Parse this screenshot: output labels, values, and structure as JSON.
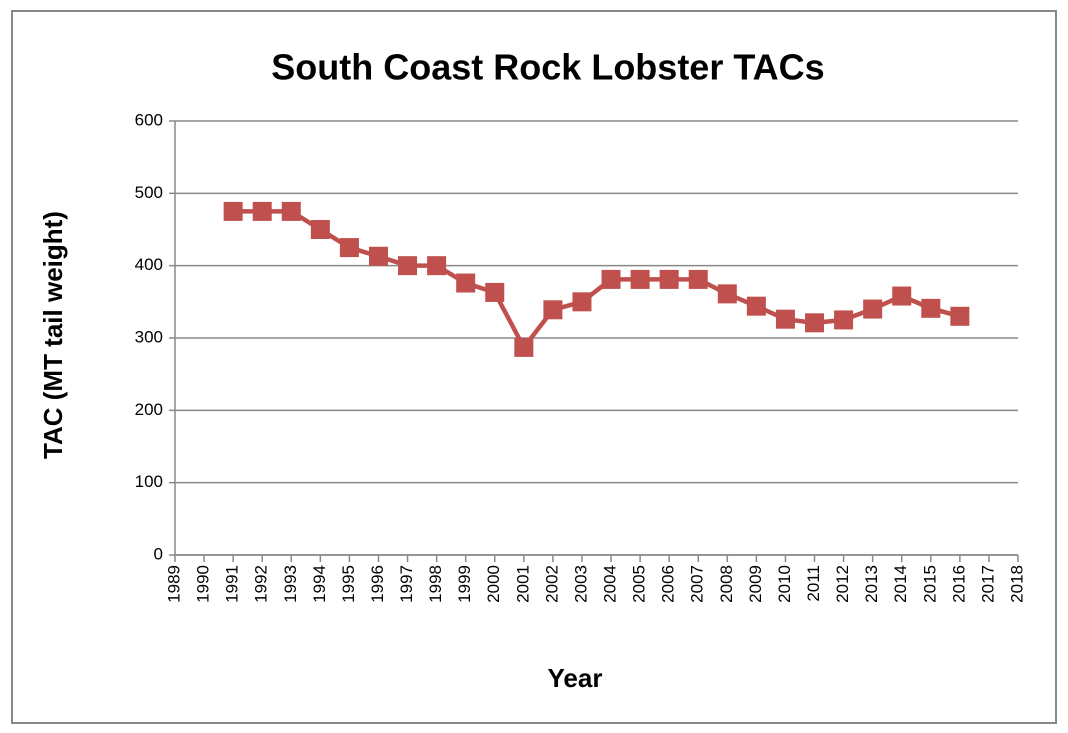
{
  "chart_data": {
    "type": "line",
    "title": "South Coast Rock Lobster TACs",
    "x_label": "Year",
    "y_label": "TAC (MT tail weight)",
    "x": [
      1991,
      1992,
      1993,
      1994,
      1995,
      1996,
      1997,
      1998,
      1999,
      2000,
      2001,
      2002,
      2003,
      2004,
      2005,
      2006,
      2007,
      2008,
      2009,
      2010,
      2011,
      2012,
      2013,
      2014,
      2015,
      2016
    ],
    "series": [
      {
        "color": "#c0504d",
        "values": [
          475,
          475,
          475,
          450,
          425,
          413,
          400,
          400,
          376,
          363,
          287,
          339,
          350,
          381,
          381,
          381,
          381,
          361,
          344,
          326,
          321,
          325,
          340,
          358,
          341,
          330
        ]
      }
    ],
    "xlim": [
      1989,
      2018
    ],
    "xticks": [
      1989,
      1990,
      1991,
      1992,
      1993,
      1994,
      1995,
      1996,
      1997,
      1998,
      1999,
      2000,
      2001,
      2002,
      2003,
      2004,
      2005,
      2006,
      2007,
      2008,
      2009,
      2010,
      2011,
      2012,
      2013,
      2014,
      2015,
      2016,
      2017,
      2018
    ],
    "ylim": [
      0,
      600
    ],
    "yticks": [
      0,
      100,
      200,
      300,
      400,
      500,
      600
    ],
    "grid": true
  }
}
